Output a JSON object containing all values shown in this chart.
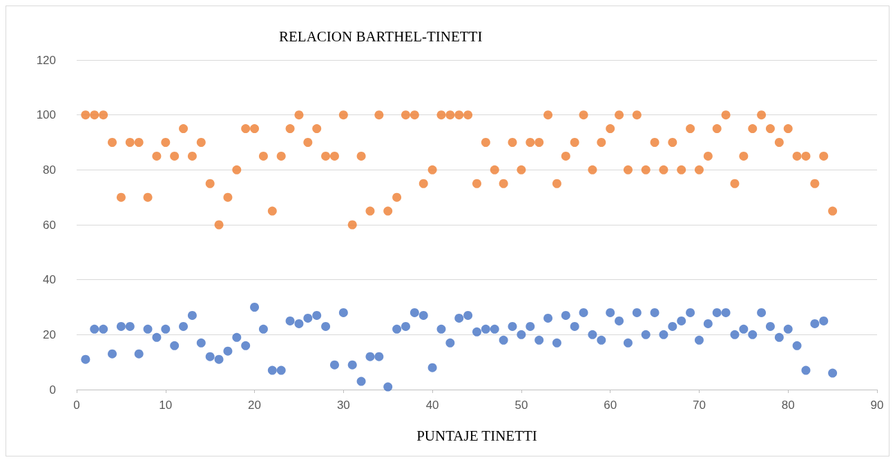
{
  "chart_data": {
    "type": "scatter",
    "title": "RELACION BARTHEL-TINETTI",
    "xlabel": "PUNTAJE TINETTI",
    "x": [
      1,
      2,
      3,
      4,
      5,
      6,
      7,
      8,
      9,
      10,
      11,
      12,
      13,
      14,
      15,
      16,
      17,
      18,
      19,
      20,
      21,
      22,
      23,
      24,
      25,
      26,
      27,
      28,
      29,
      30,
      31,
      32,
      33,
      34,
      35,
      36,
      37,
      38,
      39,
      40,
      41,
      42,
      43,
      44,
      45,
      46,
      47,
      48,
      49,
      50,
      51,
      52,
      53,
      54,
      55,
      56,
      57,
      58,
      59,
      60,
      61,
      62,
      63,
      64,
      65,
      66,
      67,
      68,
      69,
      70,
      71,
      72,
      73,
      74,
      75,
      76,
      77,
      78,
      79,
      80,
      81,
      82,
      83,
      84,
      85
    ],
    "series": [
      {
        "color": "#4472c4",
        "values": [
          11,
          22,
          22,
          13,
          23,
          23,
          13,
          22,
          19,
          22,
          16,
          23,
          27,
          17,
          12,
          11,
          14,
          19,
          16,
          30,
          22,
          7,
          7,
          25,
          24,
          26,
          27,
          23,
          9,
          28,
          9,
          3,
          12,
          12,
          1,
          22,
          23,
          28,
          27,
          8,
          22,
          17,
          26,
          27,
          21,
          22,
          22,
          18,
          23,
          20,
          23,
          18,
          26,
          17,
          27,
          23,
          28,
          20,
          18,
          28,
          25,
          17,
          28,
          20,
          28,
          20,
          23,
          25,
          28,
          18,
          24,
          28,
          28,
          20,
          22,
          20,
          28,
          23,
          19,
          22,
          16,
          7,
          24,
          25,
          6
        ]
      },
      {
        "color": "#ed7d31",
        "values": [
          100,
          100,
          100,
          90,
          70,
          90,
          90,
          70,
          85,
          90,
          85,
          95,
          85,
          90,
          75,
          60,
          70,
          80,
          95,
          95,
          85,
          65,
          85,
          95,
          100,
          90,
          95,
          85,
          85,
          100,
          60,
          85,
          65,
          100,
          65,
          70,
          100,
          100,
          75,
          80,
          100,
          100,
          100,
          100,
          75,
          90,
          80,
          75,
          90,
          80,
          90,
          90,
          100,
          75,
          85,
          90,
          100,
          80,
          90,
          95,
          100,
          80,
          100,
          80,
          90,
          80,
          90,
          80,
          95,
          80,
          85,
          95,
          100,
          75,
          85,
          95,
          100,
          95,
          90,
          95,
          85,
          85,
          75,
          85,
          65
        ]
      }
    ],
    "xlim": [
      0,
      90
    ],
    "xticks": [
      0,
      10,
      20,
      30,
      40,
      50,
      60,
      70,
      80,
      90
    ],
    "ylim": [
      0,
      120
    ],
    "yticks": [
      0,
      20,
      40,
      60,
      80,
      100,
      120
    ],
    "grid": "y",
    "marker": "circle"
  }
}
